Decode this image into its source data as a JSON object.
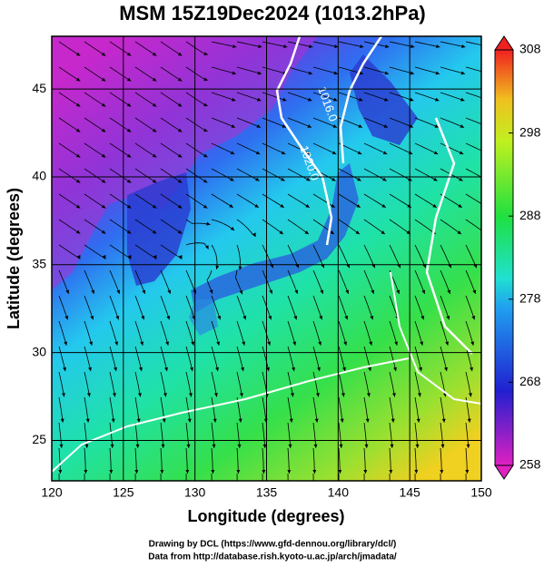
{
  "chart_data": {
    "type": "map",
    "title": "MSM 15Z19Dec2024 (1013.2hPa)",
    "x_label": "Longitude (degrees)",
    "y_label": "Latitude  (degrees)",
    "xlim": [
      120,
      150
    ],
    "xticks": [
      120,
      125,
      130,
      135,
      140,
      145,
      150
    ],
    "ylim": [
      22.7,
      48
    ],
    "yticks": [
      25,
      30,
      35,
      40,
      45
    ],
    "grid": true,
    "colorbar": {
      "lim": [
        258,
        308
      ],
      "ticks": [
        258,
        268,
        278,
        288,
        298,
        308
      ]
    },
    "contour_labels": [
      "1016.0",
      "1020.0"
    ],
    "credits": [
      "Drawing by DCL (https://www.gfd-dennou.org/library/dcl/)",
      "Data from http://database.rish.kyoto-u.ac.jp/arch/jmadata/"
    ]
  }
}
